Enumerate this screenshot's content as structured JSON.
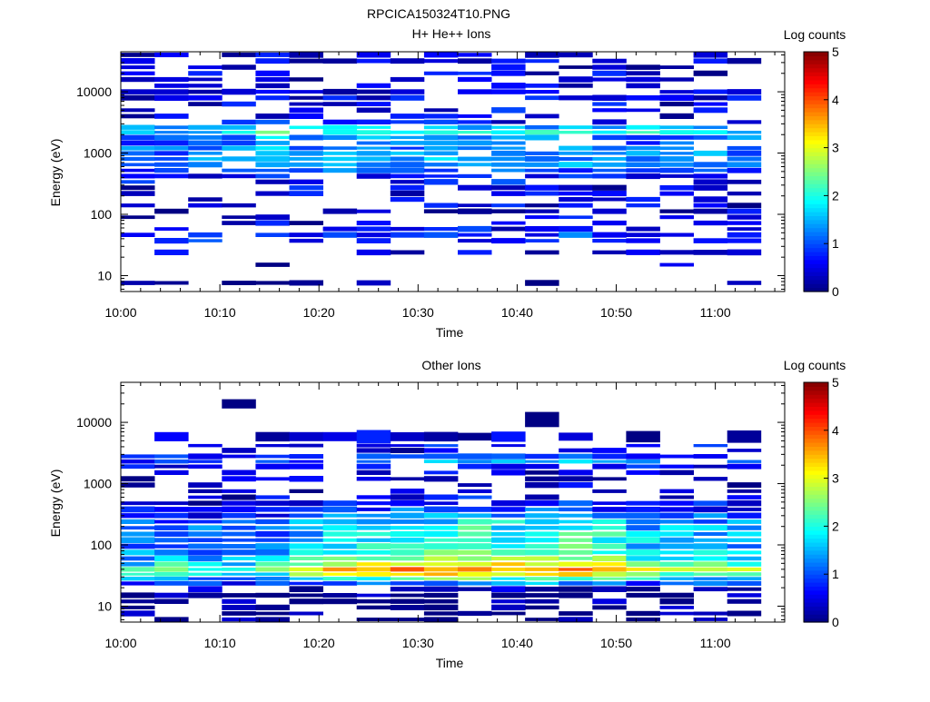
{
  "figure_title": "RPCICA150324T10.PNG",
  "colorscale": [
    "#00007f",
    "#0000ff",
    "#007fff",
    "#00ffff",
    "#7fff7f",
    "#ffff00",
    "#ff7f00",
    "#ff0000",
    "#7f0000"
  ],
  "chart_data": [
    {
      "type": "heatmap",
      "title": "H+ He++ Ions",
      "xlabel": "Time",
      "ylabel": "Energy (eV)",
      "yscale": "log",
      "ylim": [
        5.5,
        45000
      ],
      "xlim": [
        "10:00",
        "11:07"
      ],
      "xticks": [
        "10:00",
        "10:10",
        "10:20",
        "10:30",
        "10:40",
        "10:50",
        "11:00"
      ],
      "yticks": [
        "10",
        "100",
        "1000",
        "10000"
      ],
      "colorbar": {
        "label": "Log counts",
        "range": [
          0,
          5
        ],
        "ticks": [
          "0",
          "1",
          "2",
          "3",
          "4",
          "5"
        ]
      },
      "time_bins_min": [
        0,
        3.4,
        6.8,
        10.2,
        13.6,
        17,
        20.4,
        23.8,
        27.2,
        30.6,
        34,
        37.4,
        40.8,
        44.2,
        47.6,
        51,
        54.4,
        57.8,
        61.2
      ],
      "energy_profile": [
        {
          "e": 40000,
          "v": 0.3,
          "d": 0.4
        },
        {
          "e": 32000,
          "v": 0.4,
          "d": 0.5
        },
        {
          "e": 25000,
          "v": 0.3,
          "d": 0.4
        },
        {
          "e": 20000,
          "v": 0.4,
          "d": 0.45
        },
        {
          "e": 16000,
          "v": 0.45,
          "d": 0.5
        },
        {
          "e": 12500,
          "v": 0.4,
          "d": 0.45
        },
        {
          "e": 10000,
          "v": 0.45,
          "d": 0.5
        },
        {
          "e": 8000,
          "v": 0.5,
          "d": 0.55
        },
        {
          "e": 6300,
          "v": 0.45,
          "d": 0.5
        },
        {
          "e": 5000,
          "v": 0.5,
          "d": 0.55
        },
        {
          "e": 4000,
          "v": 0.55,
          "d": 0.6
        },
        {
          "e": 3200,
          "v": 0.6,
          "d": 0.65
        },
        {
          "e": 2600,
          "v": 1.5,
          "d": 0.95
        },
        {
          "e": 2200,
          "v": 2.0,
          "d": 0.95
        },
        {
          "e": 1800,
          "v": 1.3,
          "d": 0.9
        },
        {
          "e": 1450,
          "v": 1.0,
          "d": 0.85
        },
        {
          "e": 1200,
          "v": 1.2,
          "d": 0.9
        },
        {
          "e": 1000,
          "v": 1.3,
          "d": 0.9
        },
        {
          "e": 800,
          "v": 1.3,
          "d": 0.9
        },
        {
          "e": 650,
          "v": 1.2,
          "d": 0.85
        },
        {
          "e": 520,
          "v": 1.0,
          "d": 0.8
        },
        {
          "e": 420,
          "v": 0.8,
          "d": 0.7
        },
        {
          "e": 340,
          "v": 0.6,
          "d": 0.6
        },
        {
          "e": 270,
          "v": 0.5,
          "d": 0.55
        },
        {
          "e": 220,
          "v": 0.5,
          "d": 0.55
        },
        {
          "e": 175,
          "v": 0.45,
          "d": 0.5
        },
        {
          "e": 140,
          "v": 0.4,
          "d": 0.5
        },
        {
          "e": 112,
          "v": 0.4,
          "d": 0.45
        },
        {
          "e": 90,
          "v": 0.4,
          "d": 0.45
        },
        {
          "e": 72,
          "v": 0.35,
          "d": 0.4
        },
        {
          "e": 58,
          "v": 0.5,
          "d": 0.55
        },
        {
          "e": 46,
          "v": 0.9,
          "d": 0.65
        },
        {
          "e": 37,
          "v": 0.7,
          "d": 0.65
        },
        {
          "e": 30,
          "v": 0.0,
          "d": 0.0
        },
        {
          "e": 24,
          "v": 0.35,
          "d": 0.2
        },
        {
          "e": 19,
          "v": 0.0,
          "d": 0.0
        },
        {
          "e": 15,
          "v": 0.2,
          "d": 0.15
        },
        {
          "e": 12,
          "v": 0.0,
          "d": 0.0
        },
        {
          "e": 9.5,
          "v": 0.1,
          "d": 0.15
        },
        {
          "e": 7.6,
          "v": 0.1,
          "d": 0.15
        },
        {
          "e": 6.1,
          "v": 0.0,
          "d": 0.0
        }
      ],
      "time_modulation": [
        0.9,
        0.85,
        0.9,
        1.0,
        1.15,
        1.0,
        1.0,
        0.95,
        1.0,
        1.1,
        1.15,
        1.1,
        1.0,
        1.05,
        1.0,
        0.95,
        0.95,
        1.0,
        0.9
      ],
      "seed": 11
    },
    {
      "type": "heatmap",
      "title": "Other Ions",
      "xlabel": "Time",
      "ylabel": "Energy (eV)",
      "yscale": "log",
      "ylim": [
        5.5,
        45000
      ],
      "xlim": [
        "10:00",
        "11:07"
      ],
      "xticks": [
        "10:00",
        "10:10",
        "10:20",
        "10:30",
        "10:40",
        "10:50",
        "11:00"
      ],
      "yticks": [
        "10",
        "100",
        "1000",
        "10000"
      ],
      "colorbar": {
        "label": "Log counts",
        "range": [
          0,
          5
        ],
        "ticks": [
          "0",
          "1",
          "2",
          "3",
          "4",
          "5"
        ]
      },
      "time_bins_min": [
        0,
        3.4,
        6.8,
        10.2,
        13.6,
        17,
        20.4,
        23.8,
        27.2,
        30.6,
        34,
        37.4,
        40.8,
        44.2,
        47.6,
        51,
        54.4,
        57.8,
        61.2
      ],
      "energy_profile": [
        {
          "e": 22000,
          "v": 0.3,
          "d": 0.05
        },
        {
          "e": 12000,
          "v": 0.3,
          "d": 0.05
        },
        {
          "e": 4800,
          "v": 0.4,
          "d": 0.55
        },
        {
          "e": 4200,
          "v": 0.7,
          "d": 0.7
        },
        {
          "e": 3600,
          "v": 0.4,
          "d": 0.5
        },
        {
          "e": 2700,
          "v": 1.0,
          "d": 0.8
        },
        {
          "e": 2300,
          "v": 1.4,
          "d": 0.9
        },
        {
          "e": 1950,
          "v": 0.8,
          "d": 0.7
        },
        {
          "e": 1500,
          "v": 0.5,
          "d": 0.55
        },
        {
          "e": 1200,
          "v": 0.4,
          "d": 0.5
        },
        {
          "e": 950,
          "v": 0.4,
          "d": 0.5
        },
        {
          "e": 750,
          "v": 0.5,
          "d": 0.6
        },
        {
          "e": 600,
          "v": 0.6,
          "d": 0.7
        },
        {
          "e": 480,
          "v": 0.8,
          "d": 0.95
        },
        {
          "e": 380,
          "v": 1.0,
          "d": 1.0
        },
        {
          "e": 300,
          "v": 1.4,
          "d": 1.0
        },
        {
          "e": 240,
          "v": 1.7,
          "d": 1.0
        },
        {
          "e": 190,
          "v": 1.9,
          "d": 1.0
        },
        {
          "e": 150,
          "v": 2.0,
          "d": 1.0
        },
        {
          "e": 120,
          "v": 2.0,
          "d": 1.0
        },
        {
          "e": 95,
          "v": 2.1,
          "d": 1.0
        },
        {
          "e": 75,
          "v": 2.3,
          "d": 1.0
        },
        {
          "e": 60,
          "v": 2.6,
          "d": 1.0
        },
        {
          "e": 48,
          "v": 3.2,
          "d": 1.0
        },
        {
          "e": 40,
          "v": 3.6,
          "d": 1.0
        },
        {
          "e": 33,
          "v": 3.2,
          "d": 1.0
        },
        {
          "e": 28,
          "v": 2.2,
          "d": 1.0
        },
        {
          "e": 24,
          "v": 1.3,
          "d": 1.0
        },
        {
          "e": 19,
          "v": 0.3,
          "d": 0.5
        },
        {
          "e": 15,
          "v": 0.1,
          "d": 0.6
        },
        {
          "e": 12,
          "v": 0.05,
          "d": 0.6
        },
        {
          "e": 9.5,
          "v": 0.05,
          "d": 0.6
        },
        {
          "e": 7.6,
          "v": 0.05,
          "d": 0.6
        },
        {
          "e": 6.1,
          "v": 0.05,
          "d": 0.6
        }
      ],
      "time_modulation": [
        0.55,
        0.6,
        0.55,
        0.55,
        0.6,
        0.75,
        0.95,
        0.95,
        1.0,
        1.0,
        1.05,
        1.0,
        1.0,
        1.0,
        0.95,
        0.8,
        0.75,
        0.75,
        0.7
      ],
      "seed": 29
    }
  ]
}
